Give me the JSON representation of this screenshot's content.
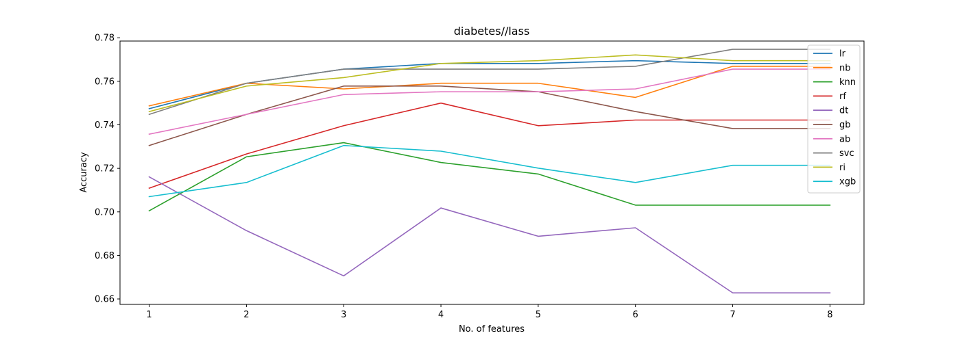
{
  "chart_data": {
    "type": "line",
    "title": "diabetes//lass",
    "xlabel": "No. of features",
    "ylabel": "Accuracy",
    "x": [
      1,
      2,
      3,
      4,
      5,
      6,
      7,
      8
    ],
    "xlim": [
      0.7,
      8.35
    ],
    "ylim": [
      0.6575,
      0.7785
    ],
    "yticks": [
      0.66,
      0.68,
      0.7,
      0.72,
      0.74,
      0.76,
      0.78
    ],
    "yticks_text": [
      "0.66",
      "0.68",
      "0.70",
      "0.72",
      "0.74",
      "0.76",
      "0.78"
    ],
    "grid": false,
    "legend_position": "top-right",
    "series": [
      {
        "name": "lr",
        "color": "#1f77b4",
        "values": [
          0.7474,
          0.7591,
          0.7656,
          0.7682,
          0.7682,
          0.7695,
          0.7682,
          0.7682
        ]
      },
      {
        "name": "nb",
        "color": "#ff7f0e",
        "values": [
          0.7487,
          0.7591,
          0.7565,
          0.7591,
          0.7591,
          0.7526,
          0.7669,
          0.7669
        ]
      },
      {
        "name": "knn",
        "color": "#2ca02c",
        "values": [
          0.7005,
          0.7253,
          0.7318,
          0.7227,
          0.7174,
          0.7031,
          0.7031,
          0.7031
        ]
      },
      {
        "name": "rf",
        "color": "#d62728",
        "values": [
          0.7109,
          0.7266,
          0.7396,
          0.75,
          0.7396,
          0.7422,
          0.7422,
          0.7422
        ]
      },
      {
        "name": "dt",
        "color": "#9467bd",
        "values": [
          0.7161,
          0.6914,
          0.6706,
          0.7018,
          0.6888,
          0.6927,
          0.6628,
          0.6628
        ]
      },
      {
        "name": "gb",
        "color": "#8c564b",
        "values": [
          0.7305,
          0.7448,
          0.7578,
          0.7578,
          0.7552,
          0.7461,
          0.7383,
          0.7383
        ]
      },
      {
        "name": "ab",
        "color": "#e377c2",
        "values": [
          0.7357,
          0.7448,
          0.7539,
          0.7552,
          0.7552,
          0.7565,
          0.7656,
          0.7656
        ]
      },
      {
        "name": "svc",
        "color": "#7f7f7f",
        "values": [
          0.7448,
          0.7591,
          0.7656,
          0.7656,
          0.7656,
          0.7669,
          0.7747,
          0.7747
        ]
      },
      {
        "name": "ri",
        "color": "#bcbd22",
        "values": [
          0.7461,
          0.7578,
          0.7617,
          0.7682,
          0.7695,
          0.7721,
          0.7695,
          0.7695
        ]
      },
      {
        "name": "xgb",
        "color": "#17becf",
        "values": [
          0.707,
          0.7135,
          0.7305,
          0.7279,
          0.7201,
          0.7135,
          0.7214,
          0.7214
        ]
      }
    ]
  }
}
